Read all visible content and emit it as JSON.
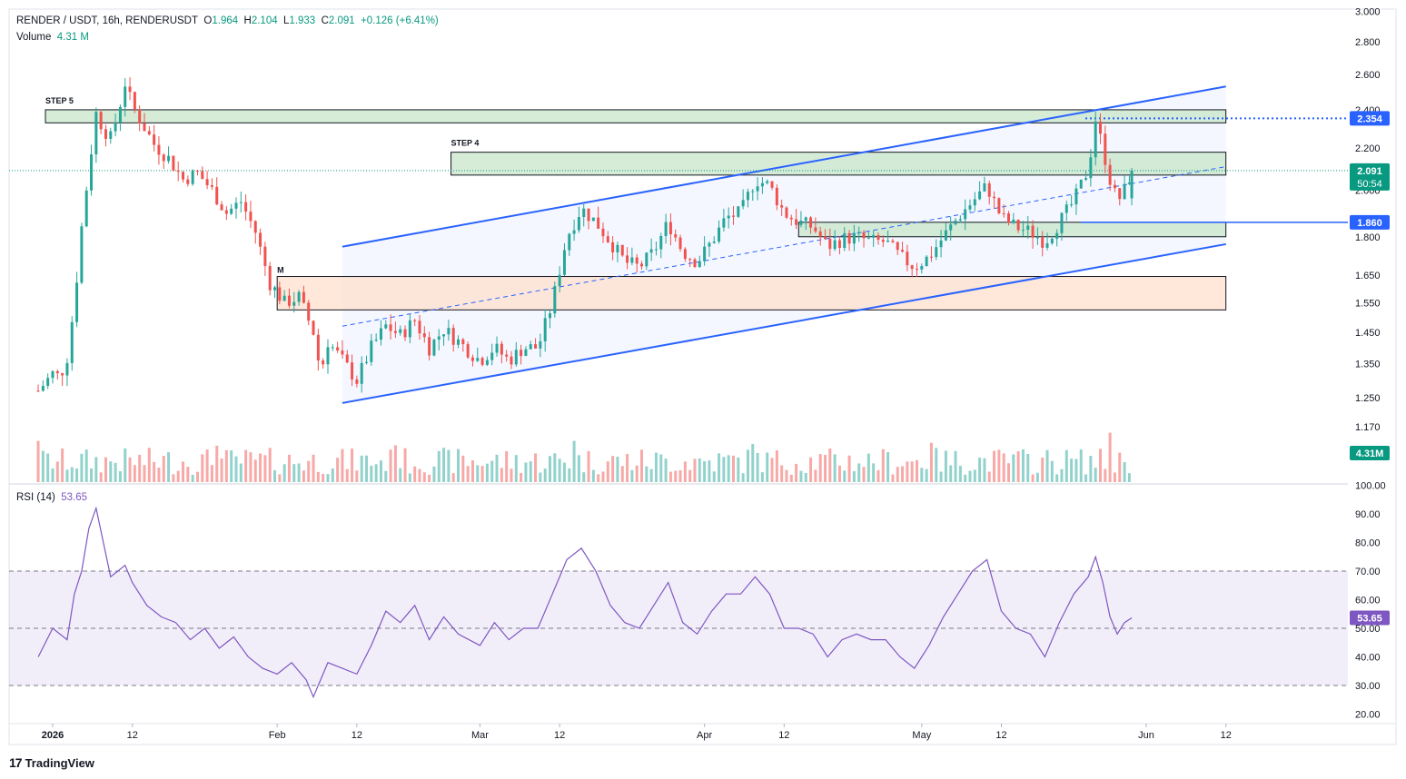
{
  "header": {
    "symbol": "RENDER / USDT, 16h, RENDERUSDT",
    "o_label": "O",
    "o": "1.964",
    "h_label": "H",
    "h": "2.104",
    "l_label": "L",
    "l": "1.933",
    "c_label": "C",
    "c": "2.091",
    "change": "+0.126 (+6.41%)",
    "volume_label": "Volume",
    "volume": "4.31 M",
    "rsi_label": "RSI (14)",
    "rsi_value": "53.65"
  },
  "badges": {
    "resistance": "2.354",
    "price": "2.091",
    "countdown": "50:54",
    "support": "1.860",
    "volume": "4.31M",
    "rsi": "53.65"
  },
  "colors": {
    "up": "#26a69a",
    "down": "#ef5350",
    "channel": "#2962ff",
    "rsi": "#7e57c2",
    "zone_green": "#c8e6c9",
    "zone_orange": "#ffe0cc"
  },
  "annotations": {
    "step5": "STEP 5",
    "step4": "STEP 4",
    "m": "M"
  },
  "watermark": "TradingView",
  "chart_data": {
    "type": "candlestick",
    "price_axis": {
      "ticks": [
        3.0,
        2.8,
        2.6,
        2.4,
        2.2,
        2.0,
        1.8,
        1.65,
        1.55,
        1.45,
        1.35,
        1.25,
        1.17
      ],
      "scale": "log"
    },
    "rsi_axis": {
      "ticks": [
        100.0,
        90.0,
        80.0,
        70.0,
        60.0,
        50.0,
        40.0,
        30.0,
        20.0
      ]
    },
    "time_axis": {
      "labels": [
        {
          "label": "2026",
          "date": "2026-01-01"
        },
        {
          "label": "12",
          "date": "2026-01-12"
        },
        {
          "label": "Feb",
          "date": "2026-02-01"
        },
        {
          "label": "12",
          "date": "2026-02-12"
        },
        {
          "label": "Mar",
          "date": "2026-03-01"
        },
        {
          "label": "12",
          "date": "2026-03-12"
        },
        {
          "label": "Apr",
          "date": "2026-04-01"
        },
        {
          "label": "12",
          "date": "2026-04-12"
        },
        {
          "label": "May",
          "date": "2026-05-01"
        },
        {
          "label": "12",
          "date": "2026-05-12"
        },
        {
          "label": "Jun",
          "date": "2026-06-01"
        },
        {
          "label": "12",
          "date": "2026-06-12"
        }
      ]
    },
    "close_path": [
      {
        "date": "2025-12-30",
        "close": 1.27
      },
      {
        "date": "2026-01-01",
        "close": 1.32
      },
      {
        "date": "2026-01-02",
        "close": 1.31
      },
      {
        "date": "2026-01-03",
        "close": 1.37
      },
      {
        "date": "2026-01-04",
        "close": 1.55
      },
      {
        "date": "2026-01-05",
        "close": 1.84
      },
      {
        "date": "2026-01-06",
        "close": 2.1
      },
      {
        "date": "2026-01-07",
        "close": 2.38
      },
      {
        "date": "2026-01-08",
        "close": 2.3
      },
      {
        "date": "2026-01-09",
        "close": 2.25
      },
      {
        "date": "2026-01-10",
        "close": 2.38
      },
      {
        "date": "2026-01-11",
        "close": 2.55
      },
      {
        "date": "2026-01-12",
        "close": 2.42
      },
      {
        "date": "2026-01-13",
        "close": 2.35
      },
      {
        "date": "2026-01-15",
        "close": 2.22
      },
      {
        "date": "2026-01-17",
        "close": 2.15
      },
      {
        "date": "2026-01-19",
        "close": 2.05
      },
      {
        "date": "2026-01-21",
        "close": 2.08
      },
      {
        "date": "2026-01-23",
        "close": 2.0
      },
      {
        "date": "2026-01-25",
        "close": 1.9
      },
      {
        "date": "2026-01-27",
        "close": 1.95
      },
      {
        "date": "2026-01-29",
        "close": 1.82
      },
      {
        "date": "2026-01-31",
        "close": 1.62
      },
      {
        "date": "2026-02-02",
        "close": 1.55
      },
      {
        "date": "2026-02-04",
        "close": 1.57
      },
      {
        "date": "2026-02-06",
        "close": 1.45
      },
      {
        "date": "2026-02-07",
        "close": 1.32
      },
      {
        "date": "2026-02-08",
        "close": 1.42
      },
      {
        "date": "2026-02-10",
        "close": 1.36
      },
      {
        "date": "2026-02-12",
        "close": 1.3
      },
      {
        "date": "2026-02-14",
        "close": 1.4
      },
      {
        "date": "2026-02-16",
        "close": 1.47
      },
      {
        "date": "2026-02-18",
        "close": 1.44
      },
      {
        "date": "2026-02-20",
        "close": 1.49
      },
      {
        "date": "2026-02-22",
        "close": 1.4
      },
      {
        "date": "2026-02-24",
        "close": 1.46
      },
      {
        "date": "2026-02-26",
        "close": 1.42
      },
      {
        "date": "2026-03-01",
        "close": 1.36
      },
      {
        "date": "2026-03-03",
        "close": 1.4
      },
      {
        "date": "2026-03-05",
        "close": 1.36
      },
      {
        "date": "2026-03-07",
        "close": 1.4
      },
      {
        "date": "2026-03-09",
        "close": 1.4
      },
      {
        "date": "2026-03-11",
        "close": 1.55
      },
      {
        "date": "2026-03-13",
        "close": 1.8
      },
      {
        "date": "2026-03-15",
        "close": 1.92
      },
      {
        "date": "2026-03-17",
        "close": 1.86
      },
      {
        "date": "2026-03-19",
        "close": 1.78
      },
      {
        "date": "2026-03-21",
        "close": 1.7
      },
      {
        "date": "2026-03-23",
        "close": 1.68
      },
      {
        "date": "2026-03-25",
        "close": 1.74
      },
      {
        "date": "2026-03-27",
        "close": 1.86
      },
      {
        "date": "2026-03-29",
        "close": 1.74
      },
      {
        "date": "2026-03-31",
        "close": 1.7
      },
      {
        "date": "2026-04-02",
        "close": 1.78
      },
      {
        "date": "2026-04-04",
        "close": 1.88
      },
      {
        "date": "2026-04-06",
        "close": 1.9
      },
      {
        "date": "2026-04-08",
        "close": 2.05
      },
      {
        "date": "2026-04-10",
        "close": 2.02
      },
      {
        "date": "2026-04-12",
        "close": 1.9
      },
      {
        "date": "2026-04-14",
        "close": 1.86
      },
      {
        "date": "2026-04-16",
        "close": 1.84
      },
      {
        "date": "2026-04-18",
        "close": 1.76
      },
      {
        "date": "2026-04-20",
        "close": 1.79
      },
      {
        "date": "2026-04-22",
        "close": 1.8
      },
      {
        "date": "2026-04-24",
        "close": 1.78
      },
      {
        "date": "2026-04-26",
        "close": 1.78
      },
      {
        "date": "2026-04-28",
        "close": 1.72
      },
      {
        "date": "2026-04-30",
        "close": 1.68
      },
      {
        "date": "2026-05-02",
        "close": 1.72
      },
      {
        "date": "2026-05-04",
        "close": 1.8
      },
      {
        "date": "2026-05-06",
        "close": 1.88
      },
      {
        "date": "2026-05-08",
        "close": 1.95
      },
      {
        "date": "2026-05-10",
        "close": 2.02
      },
      {
        "date": "2026-05-12",
        "close": 1.88
      },
      {
        "date": "2026-05-14",
        "close": 1.84
      },
      {
        "date": "2026-05-16",
        "close": 1.82
      },
      {
        "date": "2026-05-18",
        "close": 1.78
      },
      {
        "date": "2026-05-20",
        "close": 1.86
      },
      {
        "date": "2026-05-22",
        "close": 1.95
      },
      {
        "date": "2026-05-24",
        "close": 2.1
      },
      {
        "date": "2026-05-25",
        "close": 2.35
      },
      {
        "date": "2026-05-26",
        "close": 2.2
      },
      {
        "date": "2026-05-27",
        "close": 2.05
      },
      {
        "date": "2026-05-28",
        "close": 1.95
      },
      {
        "date": "2026-05-29",
        "close": 2.0
      },
      {
        "date": "2026-05-30",
        "close": 2.091
      }
    ],
    "zones": [
      {
        "label": "STEP 5",
        "from_date": "2025-12-31",
        "to_date": "2026-06-12",
        "low": 2.33,
        "high": 2.4
      },
      {
        "label": "STEP 4",
        "from_date": "2026-02-25",
        "to_date": "2026-06-12",
        "low": 2.07,
        "high": 2.18
      },
      {
        "label": "",
        "from_date": "2026-04-14",
        "to_date": "2026-06-12",
        "low": 1.8,
        "high": 1.86
      },
      {
        "label": "M",
        "from_date": "2026-02-01",
        "to_date": "2026-06-12",
        "low": 1.525,
        "high": 1.645
      }
    ],
    "channel": {
      "upper": [
        {
          "date": "2026-02-10",
          "price": 1.76
        },
        {
          "date": "2026-06-12",
          "price": 2.53
        }
      ],
      "lower": [
        {
          "date": "2026-02-10",
          "price": 1.235
        },
        {
          "date": "2026-06-12",
          "price": 1.77
        }
      ],
      "mid": [
        {
          "date": "2026-02-10",
          "price": 1.47
        },
        {
          "date": "2026-06-12",
          "price": 2.11
        }
      ]
    },
    "levels": [
      {
        "price": 2.354
      },
      {
        "price": 1.86
      },
      {
        "price": 2.091
      }
    ],
    "volume": {
      "last": "4.31M"
    },
    "rsi": {
      "period": 14,
      "last": 53.65,
      "bands": [
        70,
        50,
        30
      ],
      "path": [
        {
          "date": "2025-12-30",
          "v": 40
        },
        {
          "date": "2026-01-01",
          "v": 50
        },
        {
          "date": "2026-01-03",
          "v": 46
        },
        {
          "date": "2026-01-04",
          "v": 62
        },
        {
          "date": "2026-01-05",
          "v": 70
        },
        {
          "date": "2026-01-06",
          "v": 85
        },
        {
          "date": "2026-01-07",
          "v": 92
        },
        {
          "date": "2026-01-08",
          "v": 80
        },
        {
          "date": "2026-01-09",
          "v": 68
        },
        {
          "date": "2026-01-11",
          "v": 72
        },
        {
          "date": "2026-01-12",
          "v": 66
        },
        {
          "date": "2026-01-14",
          "v": 58
        },
        {
          "date": "2026-01-16",
          "v": 54
        },
        {
          "date": "2026-01-18",
          "v": 52
        },
        {
          "date": "2026-01-20",
          "v": 46
        },
        {
          "date": "2026-01-22",
          "v": 50
        },
        {
          "date": "2026-01-24",
          "v": 43
        },
        {
          "date": "2026-01-26",
          "v": 47
        },
        {
          "date": "2026-01-28",
          "v": 40
        },
        {
          "date": "2026-01-30",
          "v": 36
        },
        {
          "date": "2026-02-01",
          "v": 34
        },
        {
          "date": "2026-02-03",
          "v": 38
        },
        {
          "date": "2026-02-05",
          "v": 32
        },
        {
          "date": "2026-02-06",
          "v": 26
        },
        {
          "date": "2026-02-08",
          "v": 38
        },
        {
          "date": "2026-02-10",
          "v": 36
        },
        {
          "date": "2026-02-12",
          "v": 34
        },
        {
          "date": "2026-02-14",
          "v": 44
        },
        {
          "date": "2026-02-16",
          "v": 56
        },
        {
          "date": "2026-02-18",
          "v": 52
        },
        {
          "date": "2026-02-20",
          "v": 58
        },
        {
          "date": "2026-02-22",
          "v": 46
        },
        {
          "date": "2026-02-24",
          "v": 54
        },
        {
          "date": "2026-02-26",
          "v": 48
        },
        {
          "date": "2026-03-01",
          "v": 44
        },
        {
          "date": "2026-03-03",
          "v": 52
        },
        {
          "date": "2026-03-05",
          "v": 46
        },
        {
          "date": "2026-03-07",
          "v": 50
        },
        {
          "date": "2026-03-09",
          "v": 50
        },
        {
          "date": "2026-03-11",
          "v": 62
        },
        {
          "date": "2026-03-13",
          "v": 74
        },
        {
          "date": "2026-03-15",
          "v": 78
        },
        {
          "date": "2026-03-17",
          "v": 70
        },
        {
          "date": "2026-03-19",
          "v": 58
        },
        {
          "date": "2026-03-21",
          "v": 52
        },
        {
          "date": "2026-03-23",
          "v": 50
        },
        {
          "date": "2026-03-25",
          "v": 58
        },
        {
          "date": "2026-03-27",
          "v": 66
        },
        {
          "date": "2026-03-29",
          "v": 52
        },
        {
          "date": "2026-03-31",
          "v": 48
        },
        {
          "date": "2026-04-02",
          "v": 56
        },
        {
          "date": "2026-04-04",
          "v": 62
        },
        {
          "date": "2026-04-06",
          "v": 62
        },
        {
          "date": "2026-04-08",
          "v": 68
        },
        {
          "date": "2026-04-10",
          "v": 62
        },
        {
          "date": "2026-04-12",
          "v": 50
        },
        {
          "date": "2026-04-14",
          "v": 50
        },
        {
          "date": "2026-04-16",
          "v": 48
        },
        {
          "date": "2026-04-18",
          "v": 40
        },
        {
          "date": "2026-04-20",
          "v": 46
        },
        {
          "date": "2026-04-22",
          "v": 48
        },
        {
          "date": "2026-04-24",
          "v": 46
        },
        {
          "date": "2026-04-26",
          "v": 46
        },
        {
          "date": "2026-04-28",
          "v": 40
        },
        {
          "date": "2026-04-30",
          "v": 36
        },
        {
          "date": "2026-05-02",
          "v": 44
        },
        {
          "date": "2026-05-04",
          "v": 54
        },
        {
          "date": "2026-05-06",
          "v": 62
        },
        {
          "date": "2026-05-08",
          "v": 70
        },
        {
          "date": "2026-05-10",
          "v": 74
        },
        {
          "date": "2026-05-12",
          "v": 56
        },
        {
          "date": "2026-05-14",
          "v": 50
        },
        {
          "date": "2026-05-16",
          "v": 48
        },
        {
          "date": "2026-05-18",
          "v": 40
        },
        {
          "date": "2026-05-20",
          "v": 52
        },
        {
          "date": "2026-05-22",
          "v": 62
        },
        {
          "date": "2026-05-24",
          "v": 68
        },
        {
          "date": "2026-05-25",
          "v": 75
        },
        {
          "date": "2026-05-26",
          "v": 66
        },
        {
          "date": "2026-05-27",
          "v": 54
        },
        {
          "date": "2026-05-28",
          "v": 48
        },
        {
          "date": "2026-05-29",
          "v": 52
        },
        {
          "date": "2026-05-30",
          "v": 53.65
        }
      ]
    }
  }
}
